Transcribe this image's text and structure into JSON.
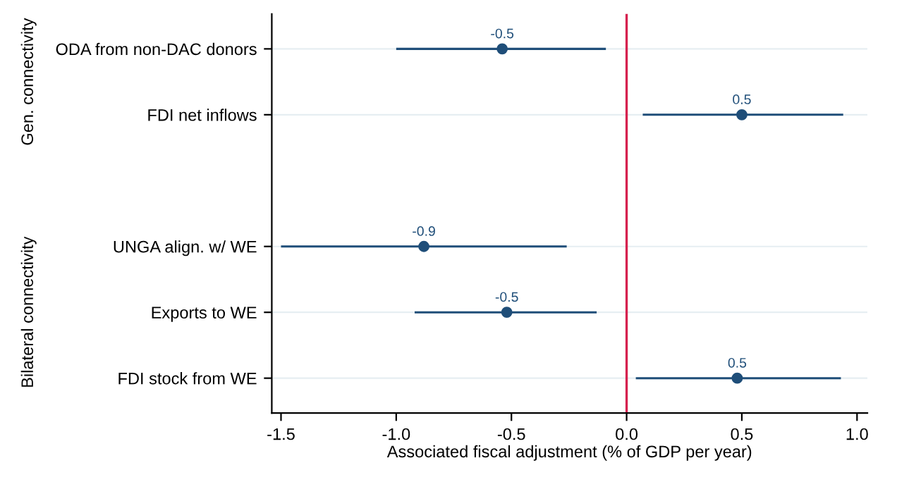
{
  "chart_data": {
    "type": "scatter",
    "orientation": "horizontal",
    "xlabel": "Associated fiscal adjustment (% of GDP per year)",
    "categories": [
      "ODA from non-DAC donors",
      "FDI net inflows",
      null,
      "UNGA align. w/ WE",
      "Exports to WE",
      "FDI stock from WE"
    ],
    "series": [
      {
        "color": "#1f4e79",
        "values": [
          -0.54,
          0.5,
          null,
          -0.88,
          -0.52,
          0.48
        ],
        "errors": [
          [
            -1.0,
            -0.09
          ],
          [
            0.07,
            0.94
          ],
          null,
          [
            -1.5,
            -0.26
          ],
          [
            -0.92,
            -0.13
          ],
          [
            0.04,
            0.93
          ]
        ],
        "value_labels": [
          "-0.5",
          "0.5",
          null,
          "-0.9",
          "-0.5",
          "0.5"
        ]
      }
    ],
    "xlim": [
      -1.54,
      1.045
    ],
    "xticks": [
      {
        "value": -1.5,
        "label": "-1.5"
      },
      {
        "value": -1.0,
        "label": "-1.0"
      },
      {
        "value": -0.5,
        "label": "-0.5"
      },
      {
        "value": 0.0,
        "label": "0.0"
      },
      {
        "value": 0.5,
        "label": "0.5"
      },
      {
        "value": 1.0,
        "label": "1.0"
      }
    ],
    "ref_lines": [
      {
        "axis": "x",
        "value": 0,
        "color": "#d6224f"
      }
    ],
    "annotations": [
      "Gen. connectivity",
      "Bilateral connectivity"
    ],
    "grid": "y",
    "marker": "circle",
    "legend": false
  }
}
